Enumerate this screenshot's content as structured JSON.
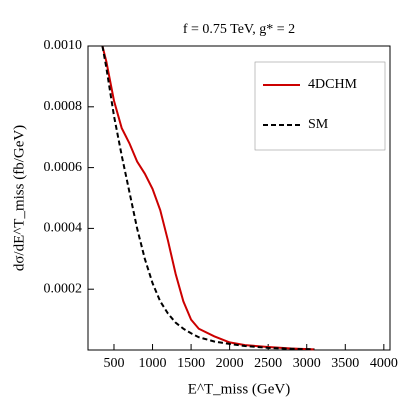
{
  "chart_data": {
    "type": "line",
    "title": "f = 0.75 TeV, g* = 2",
    "x_label": "E^T_miss (GeV)",
    "y_label": "dσ/dE^T_miss (fb/GeV)",
    "x": [
      350,
      400,
      500,
      600,
      700,
      800,
      900,
      1000,
      1100,
      1200,
      1300,
      1400,
      1500,
      1600,
      1800,
      2000,
      2200,
      2500,
      2800,
      3100
    ],
    "series": [
      {
        "name": "4DCHM",
        "color": "#cc0000",
        "dashed": false,
        "values": [
          0.001,
          0.00095,
          0.00082,
          0.00073,
          0.00068,
          0.00062,
          0.00058,
          0.00053,
          0.00046,
          0.00036,
          0.00025,
          0.00016,
          0.0001,
          7e-05,
          4.5e-05,
          2.5e-05,
          1.6e-05,
          1e-05,
          5e-06,
          2e-06
        ]
      },
      {
        "name": "SM",
        "color": "#000000",
        "dashed": true,
        "values": [
          0.001,
          0.00093,
          0.00077,
          0.00064,
          0.00052,
          0.0004,
          0.0003,
          0.00022,
          0.00016,
          0.00012,
          9e-05,
          7e-05,
          5.5e-05,
          4.2e-05,
          2.8e-05,
          2e-05,
          1.3e-05,
          7e-06,
          4e-06,
          2e-06
        ]
      }
    ],
    "xlim": [
      163,
      4080
    ],
    "xticks": [
      500,
      1000,
      1500,
      2000,
      2500,
      3000,
      3500,
      4000
    ],
    "ylim": [
      0,
      0.001
    ],
    "yticks": [
      0.0002,
      0.0004,
      0.0006,
      0.0008,
      {
        "value": 0.001,
        "label": "0.0010"
      }
    ],
    "legend": "upper right"
  }
}
